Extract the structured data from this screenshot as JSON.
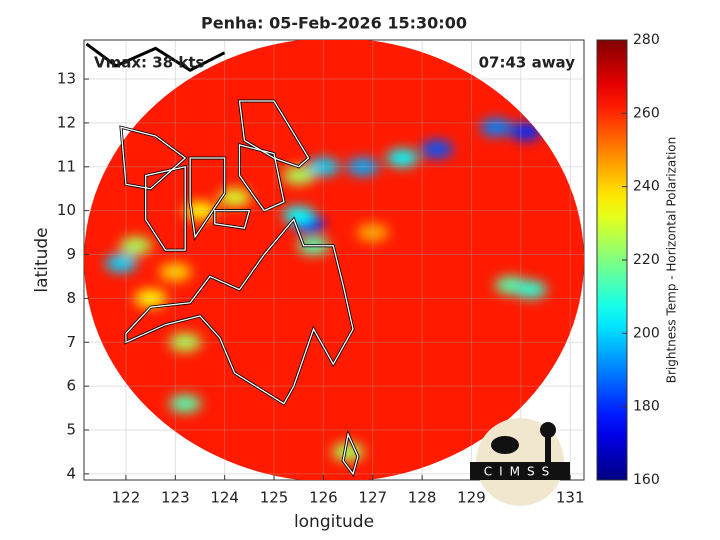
{
  "chart_data": {
    "type": "heatmap",
    "title": "Penha: 05-Feb-2026 15:30:00",
    "xlabel": "longitude",
    "ylabel": "latitude",
    "annotations": [
      "Vmax: 38 kts",
      "07:43 away"
    ],
    "logo": "CIMSS",
    "xlim": [
      121.15,
      131.28
    ],
    "ylim": [
      3.86,
      13.89
    ],
    "xticks": [
      122,
      123,
      124,
      125,
      126,
      127,
      128,
      129,
      130,
      131
    ],
    "yticks": [
      4,
      5,
      6,
      7,
      8,
      9,
      10,
      11,
      12,
      13
    ],
    "grid": true,
    "colormap": "jet",
    "colorbar": {
      "label": "Brightness Temp - Horizontal Polarization",
      "lim": [
        160,
        280
      ],
      "ticks": [
        160,
        180,
        200,
        220,
        240,
        260,
        280
      ]
    },
    "background": 262,
    "x": [
      125.7,
      125.5,
      126.0,
      126.8,
      127.6,
      128.3,
      129.5,
      130.1,
      121.9,
      122.2,
      123.2,
      124.2,
      123.5,
      125.5,
      129.8,
      130.2,
      122.5,
      123.2,
      125.8,
      126.5,
      123.0,
      127.0
    ],
    "y": [
      9.7,
      9.9,
      11.0,
      11.0,
      11.2,
      11.4,
      11.9,
      11.8,
      8.8,
      9.2,
      5.6,
      10.3,
      10.0,
      10.8,
      8.3,
      8.2,
      8.0,
      7.0,
      9.2,
      4.5,
      8.6,
      9.5
    ],
    "values": [
      175,
      205,
      200,
      195,
      205,
      185,
      190,
      180,
      200,
      225,
      215,
      230,
      235,
      225,
      215,
      210,
      235,
      225,
      215,
      225,
      240,
      245
    ]
  }
}
